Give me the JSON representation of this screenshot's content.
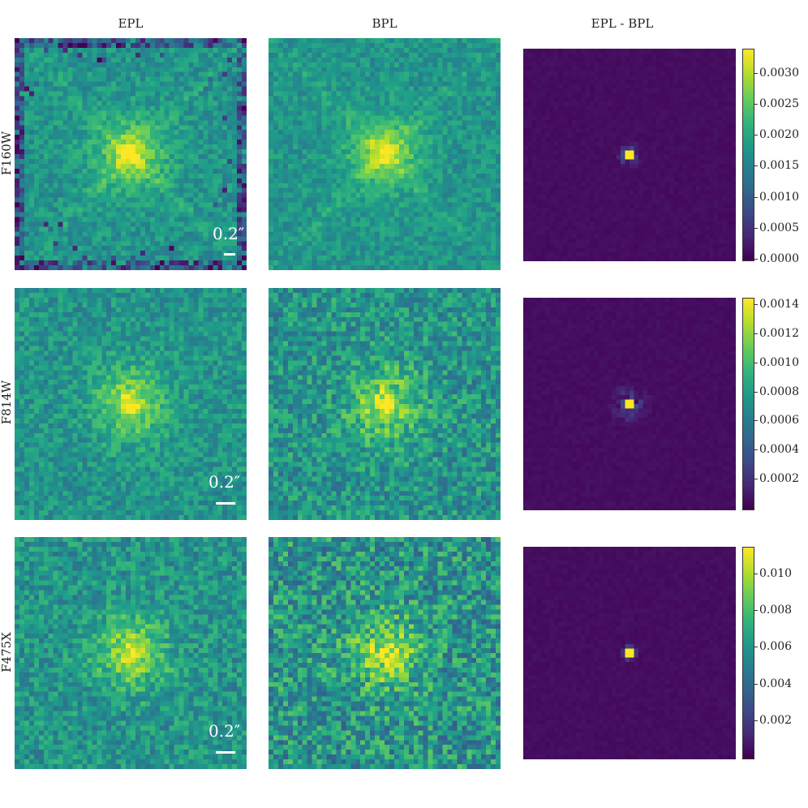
{
  "columns": [
    "EPL",
    "BPL",
    "EPL - BPL"
  ],
  "rows": [
    {
      "filter": "F160W",
      "scalebar_label": "0.2″",
      "colorbar_ticks": [
        "0.0030",
        "0.0025",
        "0.0020",
        "0.0015",
        "0.0010",
        "0.0005",
        "0.0000"
      ],
      "colorbar_values": [
        0.003,
        0.0025,
        0.002,
        0.0015,
        0.001,
        0.0005,
        0.0
      ],
      "colorbar_range": [
        0.0,
        0.0034
      ]
    },
    {
      "filter": "F814W",
      "scalebar_label": "0.2″",
      "colorbar_ticks": [
        "0.0014",
        "0.0012",
        "0.0010",
        "0.0008",
        "0.0006",
        "0.0004",
        "0.0002"
      ],
      "colorbar_values": [
        0.0014,
        0.0012,
        0.001,
        0.0008,
        0.0006,
        0.0004,
        0.0002
      ],
      "colorbar_range": [
        0.0,
        0.00145
      ]
    },
    {
      "filter": "F475X",
      "scalebar_label": "0.2″",
      "colorbar_ticks": [
        "0.010",
        "0.008",
        "0.006",
        "0.004",
        "0.002"
      ],
      "colorbar_values": [
        0.01,
        0.008,
        0.006,
        0.004,
        0.002
      ],
      "colorbar_range": [
        0.0,
        0.0115
      ]
    }
  ],
  "colormap": "viridis"
}
